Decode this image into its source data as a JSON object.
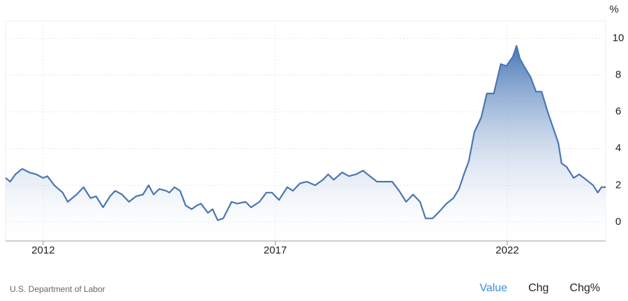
{
  "chart_data": {
    "type": "area",
    "y_label": "%",
    "x": [
      2011.19,
      2011.29,
      2011.4,
      2011.55,
      2011.7,
      2011.85,
      2012.0,
      2012.09,
      2012.24,
      2012.42,
      2012.53,
      2012.72,
      2012.87,
      2013.02,
      2013.14,
      2013.29,
      2013.44,
      2013.55,
      2013.7,
      2013.85,
      2014.0,
      2014.15,
      2014.27,
      2014.38,
      2014.5,
      2014.65,
      2014.72,
      2014.83,
      2014.95,
      2015.07,
      2015.2,
      2015.31,
      2015.4,
      2015.55,
      2015.65,
      2015.76,
      2015.88,
      2016.06,
      2016.18,
      2016.36,
      2016.48,
      2016.66,
      2016.81,
      2016.93,
      2017.08,
      2017.26,
      2017.38,
      2017.53,
      2017.68,
      2017.86,
      2018.03,
      2018.14,
      2018.26,
      2018.44,
      2018.59,
      2018.74,
      2018.89,
      2019.04,
      2019.19,
      2019.34,
      2019.52,
      2019.67,
      2019.82,
      2019.97,
      2020.12,
      2020.24,
      2020.39,
      2020.51,
      2020.69,
      2020.84,
      2020.96,
      2021.08,
      2021.17,
      2021.29,
      2021.44,
      2021.56,
      2021.71,
      2021.86,
      2021.98,
      2022.12,
      2022.2,
      2022.27,
      2022.38,
      2022.5,
      2022.62,
      2022.74,
      2022.87,
      2023.02,
      2023.1,
      2023.17,
      2023.28,
      2023.43,
      2023.55,
      2023.7,
      2023.85,
      2023.95,
      2024.03,
      2024.12
    ],
    "values": [
      2.4,
      2.2,
      2.6,
      2.9,
      2.7,
      2.6,
      2.4,
      2.5,
      2.0,
      1.6,
      1.1,
      1.5,
      1.9,
      1.3,
      1.4,
      0.8,
      1.4,
      1.7,
      1.5,
      1.1,
      1.4,
      1.5,
      2.0,
      1.5,
      1.8,
      1.7,
      1.6,
      1.9,
      1.7,
      0.9,
      0.7,
      0.9,
      1.0,
      0.5,
      0.7,
      0.1,
      0.2,
      1.1,
      1.0,
      1.1,
      0.8,
      1.1,
      1.6,
      1.6,
      1.2,
      1.9,
      1.7,
      2.1,
      2.2,
      2.0,
      2.3,
      2.6,
      2.3,
      2.7,
      2.5,
      2.6,
      2.8,
      2.5,
      2.2,
      2.2,
      2.2,
      1.7,
      1.1,
      1.5,
      1.1,
      0.2,
      0.2,
      0.5,
      1.0,
      1.3,
      1.8,
      2.7,
      3.3,
      4.9,
      5.7,
      7.0,
      7.0,
      8.6,
      8.5,
      9.0,
      9.6,
      8.9,
      8.4,
      7.9,
      7.1,
      7.1,
      6.0,
      4.9,
      4.3,
      3.2,
      3.0,
      2.4,
      2.6,
      2.3,
      2.0,
      1.6,
      1.9,
      1.9
    ],
    "color": "#4a76b2",
    "xlim": [
      2011.19,
      2024.12
    ],
    "xticks": [
      2012,
      2017,
      2022
    ],
    "ylim": [
      -1.03,
      10.95
    ],
    "yticks": [
      0,
      2,
      4,
      6,
      8,
      10
    ],
    "grid": true,
    "source": "U.S. Department of Labor",
    "controls": [
      "Value",
      "Chg",
      "Chg%"
    ]
  }
}
